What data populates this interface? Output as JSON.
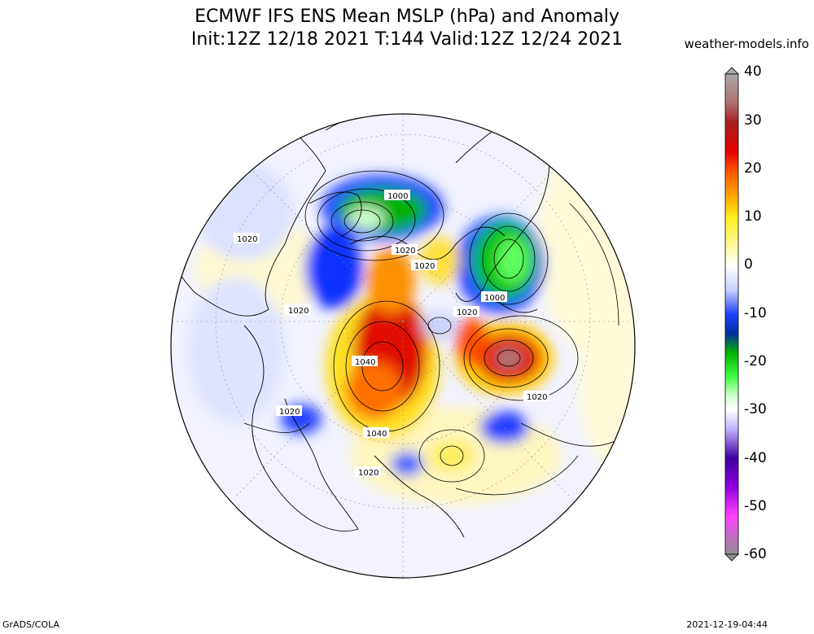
{
  "header": {
    "title_line1": "ECMWF IFS ENS Mean MSLP (hPa) and Anomaly",
    "title_line2": "Init:12Z 12/18 2021  T:144 Valid:12Z 12/24 2021",
    "source": "weather-models.info"
  },
  "colorbar": {
    "ticks": [
      "40",
      "30",
      "20",
      "10",
      "0",
      "-10",
      "-20",
      "-30",
      "-40",
      "-50",
      "-60"
    ],
    "colors": [
      "#6e6e6e",
      "#9a4040",
      "#b01010",
      "#e00000",
      "#ff4000",
      "#ff9000",
      "#ffd000",
      "#ffff60",
      "#fffbd0",
      "#ffffff",
      "#d0d8ff",
      "#8090ff",
      "#2030ff",
      "#0000c0",
      "#00a000",
      "#40ff40",
      "#c0ffc0",
      "#ffffff",
      "#c0a0ff",
      "#6000c0",
      "#a000ff",
      "#ff40ff",
      "#808080"
    ]
  },
  "isobar_labels": {
    "l1": "1000",
    "l2": "1020",
    "l3": "1020",
    "l4": "1020",
    "l5": "1000",
    "l6": "1020",
    "l7": "1020",
    "l8": "1040",
    "l9": "1020",
    "l10": "1040",
    "l11": "1020",
    "l12": "1020"
  },
  "footer": {
    "credit": "GrADS/COLA",
    "timestamp": "2021-12-19-04:44"
  },
  "map_colors": {
    "background": "#f4f4ff",
    "land_outline": "#000000",
    "isobar": "#000000"
  }
}
